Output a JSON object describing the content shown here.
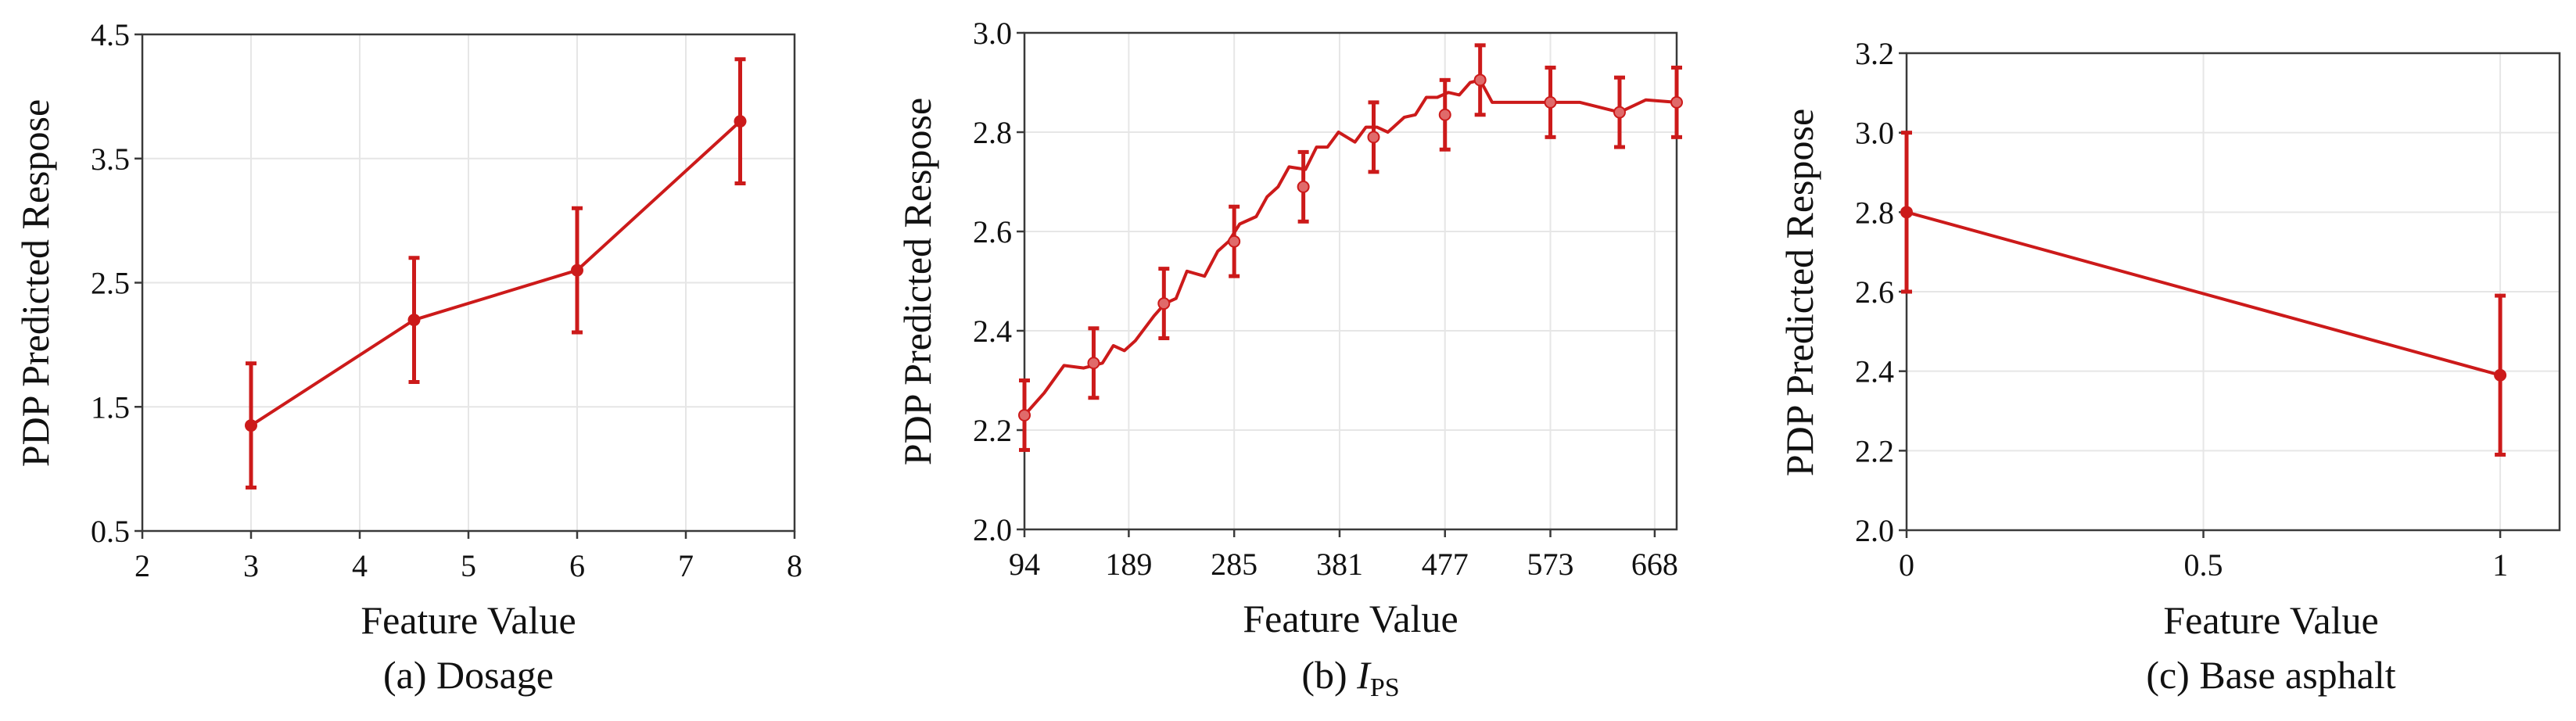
{
  "figure": {
    "series_color": "#cc1a1a",
    "marker_color": "#e06a6a"
  },
  "chart_data": [
    {
      "type": "line",
      "xlabel": "Feature Value",
      "ylabel": "PDP Predicted Respose",
      "caption": "(a) Dosage",
      "xlim": [
        2,
        8
      ],
      "ylim": [
        0.5,
        4.5
      ],
      "xticks": [
        "2",
        "3",
        "4",
        "5",
        "6",
        "7",
        "8"
      ],
      "yticks": [
        "0.5",
        "1.5",
        "2.5",
        "3.5",
        "4.5"
      ],
      "grid": true,
      "x": [
        3,
        4.5,
        6,
        7.5
      ],
      "y": [
        1.35,
        2.2,
        2.6,
        3.8
      ],
      "err": [
        0.5,
        0.5,
        0.5,
        0.5
      ]
    },
    {
      "type": "line",
      "xlabel": "Feature Value",
      "ylabel": "PDP Predicted Respose",
      "caption_prefix": "(b) ",
      "caption_var": "I",
      "caption_sub": "PS",
      "xlim": [
        94,
        688
      ],
      "ylim": [
        2.0,
        3.0
      ],
      "xticks": [
        "94",
        "189",
        "285",
        "381",
        "477",
        "573",
        "668"
      ],
      "yticks": [
        "2.0",
        "2.2",
        "2.4",
        "2.6",
        "2.8",
        "3.0"
      ],
      "grid": true,
      "x": [
        94,
        157,
        221,
        285,
        348,
        412,
        477,
        509,
        573,
        636,
        688
      ],
      "y": [
        2.23,
        2.335,
        2.455,
        2.58,
        2.69,
        2.79,
        2.835,
        2.905,
        2.86,
        2.84,
        2.86
      ],
      "err": [
        0.07,
        0.07,
        0.07,
        0.07,
        0.07,
        0.07,
        0.07,
        0.07,
        0.07,
        0.07,
        0.07
      ],
      "curve_x": [
        94,
        112,
        130,
        148,
        165,
        175,
        185,
        195,
        212,
        222,
        232,
        242,
        258,
        270,
        280,
        290,
        305,
        315,
        325,
        335,
        350,
        360,
        370,
        380,
        395,
        405,
        415,
        425,
        440,
        450,
        460,
        470,
        480,
        490,
        500,
        509,
        520,
        540,
        573,
        600,
        636,
        660,
        688
      ],
      "curve_y": [
        2.23,
        2.275,
        2.33,
        2.325,
        2.335,
        2.37,
        2.36,
        2.38,
        2.43,
        2.455,
        2.465,
        2.52,
        2.51,
        2.56,
        2.58,
        2.615,
        2.63,
        2.67,
        2.69,
        2.73,
        2.725,
        2.77,
        2.77,
        2.8,
        2.78,
        2.81,
        2.81,
        2.8,
        2.83,
        2.835,
        2.87,
        2.87,
        2.88,
        2.875,
        2.9,
        2.905,
        2.86,
        2.86,
        2.86,
        2.86,
        2.84,
        2.865,
        2.86
      ]
    },
    {
      "type": "line",
      "xlabel": "Feature Value",
      "ylabel": "PDP Predicted Respose",
      "caption": "(c) Base asphalt",
      "xlim": [
        0,
        1.1
      ],
      "ylim": [
        2.0,
        3.2
      ],
      "xticks": [
        "0",
        "0.5",
        "1"
      ],
      "xtick_values": [
        0,
        0.5,
        1
      ],
      "yticks": [
        "2.0",
        "2.2",
        "2.4",
        "2.6",
        "2.8",
        "3.0",
        "3.2"
      ],
      "grid": true,
      "x": [
        0,
        1
      ],
      "y": [
        2.8,
        2.39
      ],
      "err": [
        0.2,
        0.2
      ]
    }
  ]
}
